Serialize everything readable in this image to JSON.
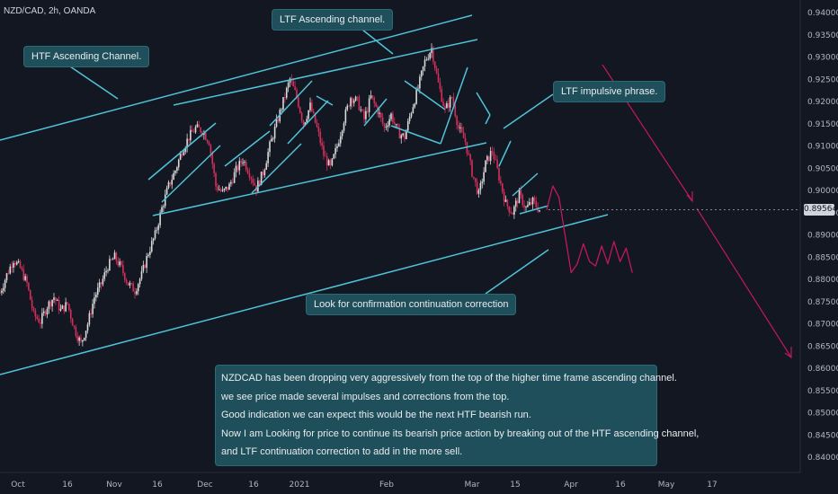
{
  "header": {
    "symbol": "NZD/CAD, 2h, OANDA"
  },
  "annotations": {
    "ltf_channel": "LTF Ascending channel.",
    "htf_channel": "HTF Ascending Channel.",
    "ltf_impulsive": "LTF impulsive phrase.",
    "confirmation": "Look for confirmation continuation correction"
  },
  "commentary": [
    "NZDCAD has been dropping very aggressively from the top of the higher time frame ascending channel.",
    "we see price made several impulses and corrections from the top.",
    "Good indication we can expect this would be the next HTF bearish run.",
    "Now I am Looking for price to continue its bearish price action by breaking out of the HTF ascending channel,",
    "and LTF continuation correction to add in the more sell."
  ],
  "current_price": "0.89564",
  "colors": {
    "background": "#131722",
    "candle_up": "#d9d9d9",
    "candle_down": "#d42f5a",
    "channel_line": "#4fc3d9",
    "projection": "#c2185b",
    "note_bg": "#1f4f5a"
  },
  "chart_data": {
    "type": "candlestick",
    "symbol": "NZD/CAD",
    "interval": "2h",
    "x_ticks": [
      "Oct",
      "16",
      "Nov",
      "16",
      "Dec",
      "16",
      "2021",
      "Feb",
      "Mar",
      "15",
      "Apr",
      "16",
      "May",
      "17"
    ],
    "y_ticks": [
      "0.94000",
      "0.93500",
      "0.93000",
      "0.92500",
      "0.92000",
      "0.91500",
      "0.91000",
      "0.90500",
      "0.90000",
      "0.89500",
      "0.89000",
      "0.88500",
      "0.88000",
      "0.87500",
      "0.87000",
      "0.86500",
      "0.86000",
      "0.85500",
      "0.85000",
      "0.84500",
      "0.84000"
    ],
    "ylim": [
      0.838,
      0.941
    ],
    "grid": false,
    "series": [
      {
        "name": "NZDCAD price (approx. path, time index / price)",
        "points": [
          [
            0,
            0.877
          ],
          [
            2,
            0.881
          ],
          [
            4,
            0.8845
          ],
          [
            6,
            0.8825
          ],
          [
            8,
            0.879
          ],
          [
            10,
            0.872
          ],
          [
            12,
            0.8705
          ],
          [
            14,
            0.874
          ],
          [
            16,
            0.876
          ],
          [
            18,
            0.873
          ],
          [
            20,
            0.8745
          ],
          [
            22,
            0.869
          ],
          [
            24,
            0.8655
          ],
          [
            26,
            0.87
          ],
          [
            28,
            0.876
          ],
          [
            30,
            0.879
          ],
          [
            32,
            0.883
          ],
          [
            34,
            0.885
          ],
          [
            36,
            0.8825
          ],
          [
            38,
            0.879
          ],
          [
            40,
            0.8775
          ],
          [
            42,
            0.881
          ],
          [
            44,
            0.886
          ],
          [
            46,
            0.89
          ],
          [
            48,
            0.896
          ],
          [
            50,
            0.901
          ],
          [
            52,
            0.9045
          ],
          [
            54,
            0.909
          ],
          [
            56,
            0.912
          ],
          [
            58,
            0.914
          ],
          [
            60,
            0.9135
          ],
          [
            62,
            0.911
          ],
          [
            64,
            0.901
          ],
          [
            66,
            0.8995
          ],
          [
            68,
            0.901
          ],
          [
            70,
            0.9045
          ],
          [
            72,
            0.907
          ],
          [
            74,
            0.904
          ],
          [
            76,
            0.9005
          ],
          [
            78,
            0.904
          ],
          [
            80,
            0.91
          ],
          [
            82,
            0.915
          ],
          [
            84,
            0.92
          ],
          [
            86,
            0.925
          ],
          [
            88,
            0.921
          ],
          [
            90,
            0.915
          ],
          [
            92,
            0.919
          ],
          [
            94,
            0.914
          ],
          [
            96,
            0.908
          ],
          [
            98,
            0.905
          ],
          [
            100,
            0.91
          ],
          [
            102,
            0.916
          ],
          [
            104,
            0.921
          ],
          [
            106,
            0.92
          ],
          [
            108,
            0.916
          ],
          [
            110,
            0.921
          ],
          [
            112,
            0.918
          ],
          [
            114,
            0.914
          ],
          [
            116,
            0.917
          ],
          [
            118,
            0.913
          ],
          [
            120,
            0.912
          ],
          [
            122,
            0.918
          ],
          [
            124,
            0.923
          ],
          [
            126,
            0.929
          ],
          [
            128,
            0.932
          ],
          [
            130,
            0.924
          ],
          [
            132,
            0.918
          ],
          [
            134,
            0.921
          ],
          [
            136,
            0.914
          ],
          [
            138,
            0.911
          ],
          [
            140,
            0.904
          ],
          [
            142,
            0.899
          ],
          [
            144,
            0.906
          ],
          [
            146,
            0.909
          ],
          [
            148,
            0.903
          ],
          [
            150,
            0.897
          ],
          [
            152,
            0.895
          ],
          [
            154,
            0.899
          ],
          [
            156,
            0.896
          ],
          [
            158,
            0.8975
          ],
          [
            160,
            0.8956
          ]
        ]
      },
      {
        "name": "Projected path",
        "points": [
          [
            160,
            0.8956
          ],
          [
            162,
            0.901
          ],
          [
            164,
            0.8985
          ],
          [
            166,
            0.89
          ],
          [
            168,
            0.8815
          ],
          [
            170,
            0.8835
          ],
          [
            172,
            0.888
          ],
          [
            174,
            0.884
          ],
          [
            176,
            0.883
          ],
          [
            178,
            0.8875
          ],
          [
            180,
            0.8835
          ],
          [
            182,
            0.8885
          ],
          [
            184,
            0.884
          ],
          [
            186,
            0.887
          ],
          [
            188,
            0.8815
          ]
        ]
      }
    ]
  }
}
